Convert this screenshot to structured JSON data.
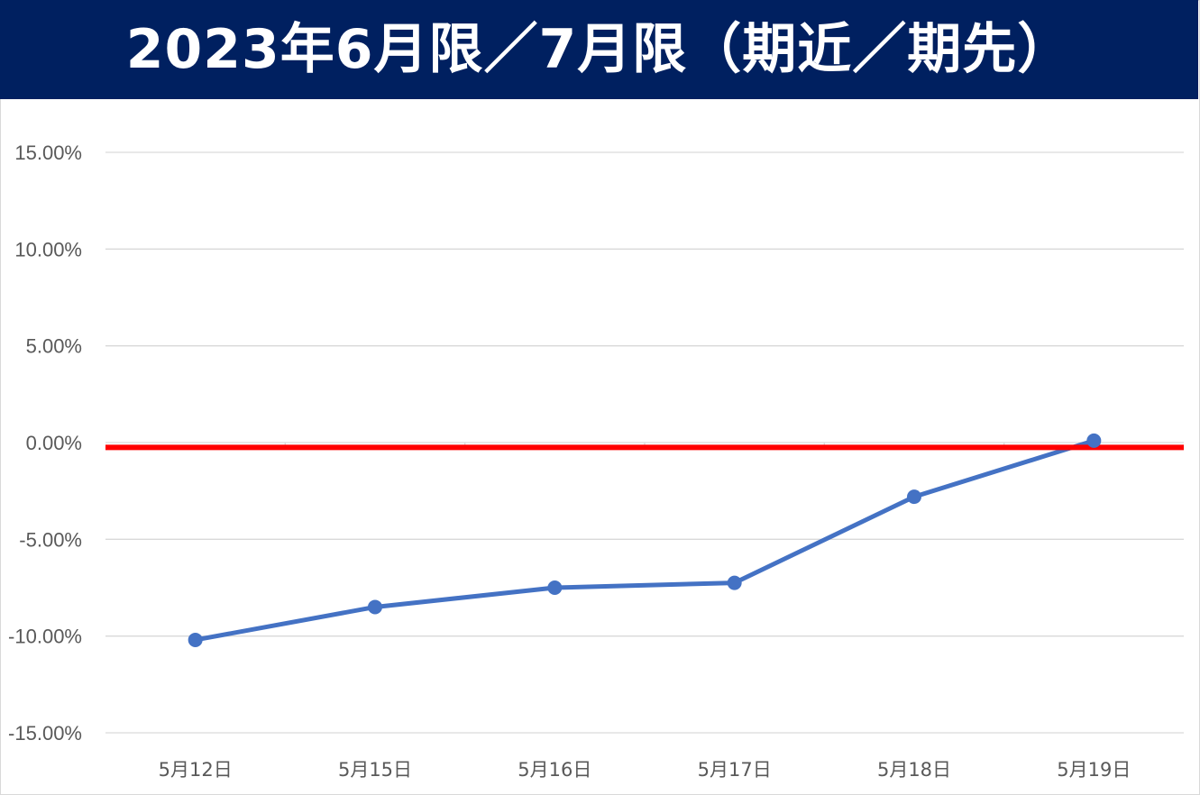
{
  "chart_data": {
    "type": "line",
    "title": "2023年6月限／7月限（期近／期先）",
    "categories": [
      "5月12日",
      "5月15日",
      "5月16日",
      "5月17日",
      "5月18日",
      "5月19日"
    ],
    "series": [
      {
        "values": [
          -10.2,
          -8.5,
          -7.5,
          -7.25,
          -2.8,
          0.1
        ],
        "color": "#4472C4"
      }
    ],
    "reference_line": {
      "value": -0.25,
      "color": "#FF0000"
    },
    "yticks": [
      "15.00%",
      "10.00%",
      "5.00%",
      "0.00%",
      "-5.00%",
      "-10.00%",
      "-15.00%"
    ],
    "ylim": [
      -15,
      15
    ],
    "grid": true,
    "legend": "none",
    "title_bar_color": "#002060"
  }
}
